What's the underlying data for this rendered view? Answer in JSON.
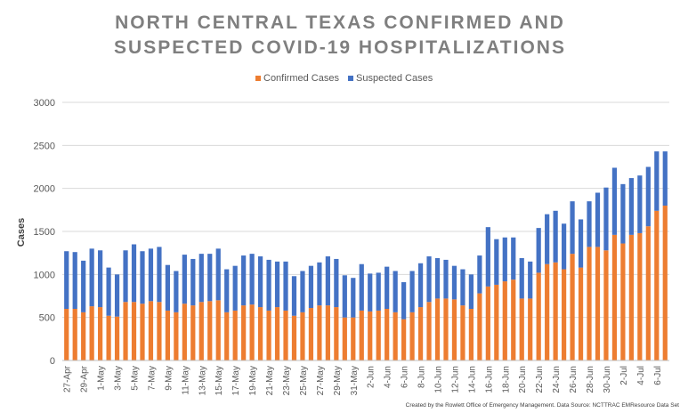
{
  "chart_data": {
    "type": "bar",
    "stacked": true,
    "title_lines": [
      "NORTH CENTRAL TEXAS CONFIRMED AND",
      "SUSPECTED COVID-19 HOSPITALIZATIONS"
    ],
    "ylabel": "Cases",
    "xlabel": "",
    "ylim": [
      0,
      3000
    ],
    "yticks": [
      0,
      500,
      1000,
      1500,
      2000,
      2500,
      3000
    ],
    "grid": true,
    "legend_position": "top",
    "credit": "Created by the Rowlett Office of Emergency Management. Data Source: NCTTRAC EMResource Data Set",
    "categories": [
      "27-Apr",
      "28-Apr",
      "29-Apr",
      "30-Apr",
      "1-May",
      "2-May",
      "3-May",
      "4-May",
      "5-May",
      "6-May",
      "7-May",
      "8-May",
      "9-May",
      "10-May",
      "11-May",
      "12-May",
      "13-May",
      "14-May",
      "15-May",
      "16-May",
      "17-May",
      "18-May",
      "19-May",
      "20-May",
      "21-May",
      "22-May",
      "23-May",
      "24-May",
      "25-May",
      "26-May",
      "27-May",
      "28-May",
      "29-May",
      "30-May",
      "31-May",
      "1-Jun",
      "2-Jun",
      "3-Jun",
      "4-Jun",
      "5-Jun",
      "6-Jun",
      "7-Jun",
      "8-Jun",
      "9-Jun",
      "10-Jun",
      "11-Jun",
      "12-Jun",
      "13-Jun",
      "14-Jun",
      "15-Jun",
      "16-Jun",
      "17-Jun",
      "18-Jun",
      "19-Jun",
      "20-Jun",
      "21-Jun",
      "22-Jun",
      "23-Jun",
      "24-Jun",
      "25-Jun",
      "26-Jun",
      "27-Jun",
      "28-Jun",
      "29-Jun",
      "30-Jun",
      "1-Jul",
      "2-Jul",
      "3-Jul",
      "4-Jul",
      "5-Jul",
      "6-Jul",
      "7-Jul"
    ],
    "tick_labels": [
      "27-Apr",
      "",
      "29-Apr",
      "",
      "1-May",
      "",
      "3-May",
      "",
      "5-May",
      "",
      "7-May",
      "",
      "9-May",
      "",
      "11-May",
      "",
      "13-May",
      "",
      "15-May",
      "",
      "17-May",
      "",
      "19-May",
      "",
      "21-May",
      "",
      "23-May",
      "",
      "25-May",
      "",
      "27-May",
      "",
      "29-May",
      "",
      "31-May",
      "",
      "2-Jun",
      "",
      "4-Jun",
      "",
      "6-Jun",
      "",
      "8-Jun",
      "",
      "10-Jun",
      "",
      "12-Jun",
      "",
      "14-Jun",
      "",
      "16-Jun",
      "",
      "18-Jun",
      "",
      "20-Jun",
      "",
      "22-Jun",
      "",
      "24-Jun",
      "",
      "26-Jun",
      "",
      "28-Jun",
      "",
      "30-Jun",
      "",
      "2-Jul",
      "",
      "4-Jul",
      "",
      "6-Jul",
      ""
    ],
    "series": [
      {
        "name": "Confirmed Cases",
        "color": "#ED7D31",
        "values": [
          600,
          600,
          560,
          630,
          620,
          520,
          510,
          680,
          680,
          660,
          690,
          680,
          580,
          560,
          660,
          640,
          680,
          690,
          700,
          560,
          580,
          640,
          650,
          620,
          580,
          620,
          580,
          520,
          560,
          610,
          640,
          640,
          620,
          500,
          500,
          580,
          570,
          580,
          600,
          560,
          480,
          560,
          620,
          680,
          720,
          720,
          710,
          640,
          600,
          780,
          860,
          880,
          920,
          940,
          720,
          720,
          1020,
          1120,
          1140,
          1060,
          1240,
          1080,
          1320,
          1320,
          1280,
          1460,
          1360,
          1460,
          1480,
          1560,
          1740,
          1800
        ]
      },
      {
        "name": "Suspected Cases",
        "color": "#4472C4",
        "values": [
          670,
          660,
          600,
          670,
          660,
          560,
          490,
          600,
          670,
          610,
          610,
          640,
          530,
          480,
          570,
          540,
          560,
          550,
          600,
          500,
          520,
          580,
          590,
          590,
          590,
          530,
          570,
          460,
          480,
          490,
          500,
          570,
          560,
          490,
          460,
          540,
          440,
          440,
          490,
          480,
          430,
          480,
          510,
          530,
          470,
          450,
          390,
          420,
          400,
          440,
          690,
          530,
          510,
          490,
          470,
          430,
          520,
          580,
          600,
          530,
          610,
          560,
          530,
          630,
          730,
          780,
          690,
          660,
          670,
          690,
          690,
          630
        ]
      }
    ]
  }
}
